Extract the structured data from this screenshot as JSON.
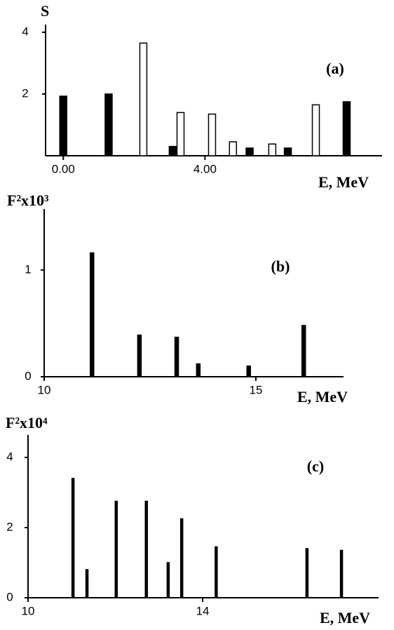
{
  "chart_data": [
    {
      "type": "bar",
      "annotation": "(a)",
      "y_label": "S",
      "x_label": "E, MeV",
      "xlim": [
        -0.5,
        9
      ],
      "ylim": [
        0,
        4.25
      ],
      "xticks": [
        {
          "value": 0,
          "label": "0.00"
        },
        {
          "value": 4,
          "label": "4.00"
        }
      ],
      "yticks": [
        2,
        4
      ],
      "series": [
        {
          "color": "#000000",
          "x": [
            0.0,
            1.28,
            3.09,
            5.26,
            6.34,
            8.0
          ],
          "values": [
            1.93,
            2.0,
            0.3,
            0.25,
            0.25,
            1.75
          ]
        },
        {
          "color": "#ffffff",
          "x": [
            2.26,
            3.31,
            4.2,
            4.79,
            5.9,
            7.13
          ],
          "values": [
            3.65,
            1.4,
            1.35,
            0.45,
            0.38,
            1.65
          ]
        }
      ]
    },
    {
      "type": "bar",
      "annotation": "(b)",
      "y_label": "F²x10³",
      "x_label": "E, MeV",
      "xlim": [
        10,
        17.07
      ],
      "ylim": [
        0,
        1.57
      ],
      "xticks": [
        10,
        15
      ],
      "yticks": [
        0,
        1
      ],
      "series": [
        {
          "color": "#000000",
          "x": [
            11.13,
            12.25,
            13.13,
            13.64,
            14.83,
            16.13
          ],
          "values": [
            1.16,
            0.39,
            0.37,
            0.12,
            0.1,
            0.48
          ]
        }
      ]
    },
    {
      "type": "bar",
      "annotation": "(c)",
      "y_label": "F²x10⁴",
      "x_label": "E, MeV",
      "xlim": [
        10,
        18.03
      ],
      "ylim": [
        0,
        4.64
      ],
      "xticks": [
        10,
        14
      ],
      "yticks": [
        0,
        2,
        4
      ],
      "series": [
        {
          "color": "#000000",
          "x": [
            11.03,
            11.35,
            12.02,
            12.71,
            13.21,
            13.52,
            14.31,
            16.39,
            17.18
          ],
          "values": [
            3.4,
            0.8,
            2.75,
            2.75,
            1.0,
            2.25,
            1.45,
            1.4,
            1.35
          ]
        }
      ]
    }
  ]
}
